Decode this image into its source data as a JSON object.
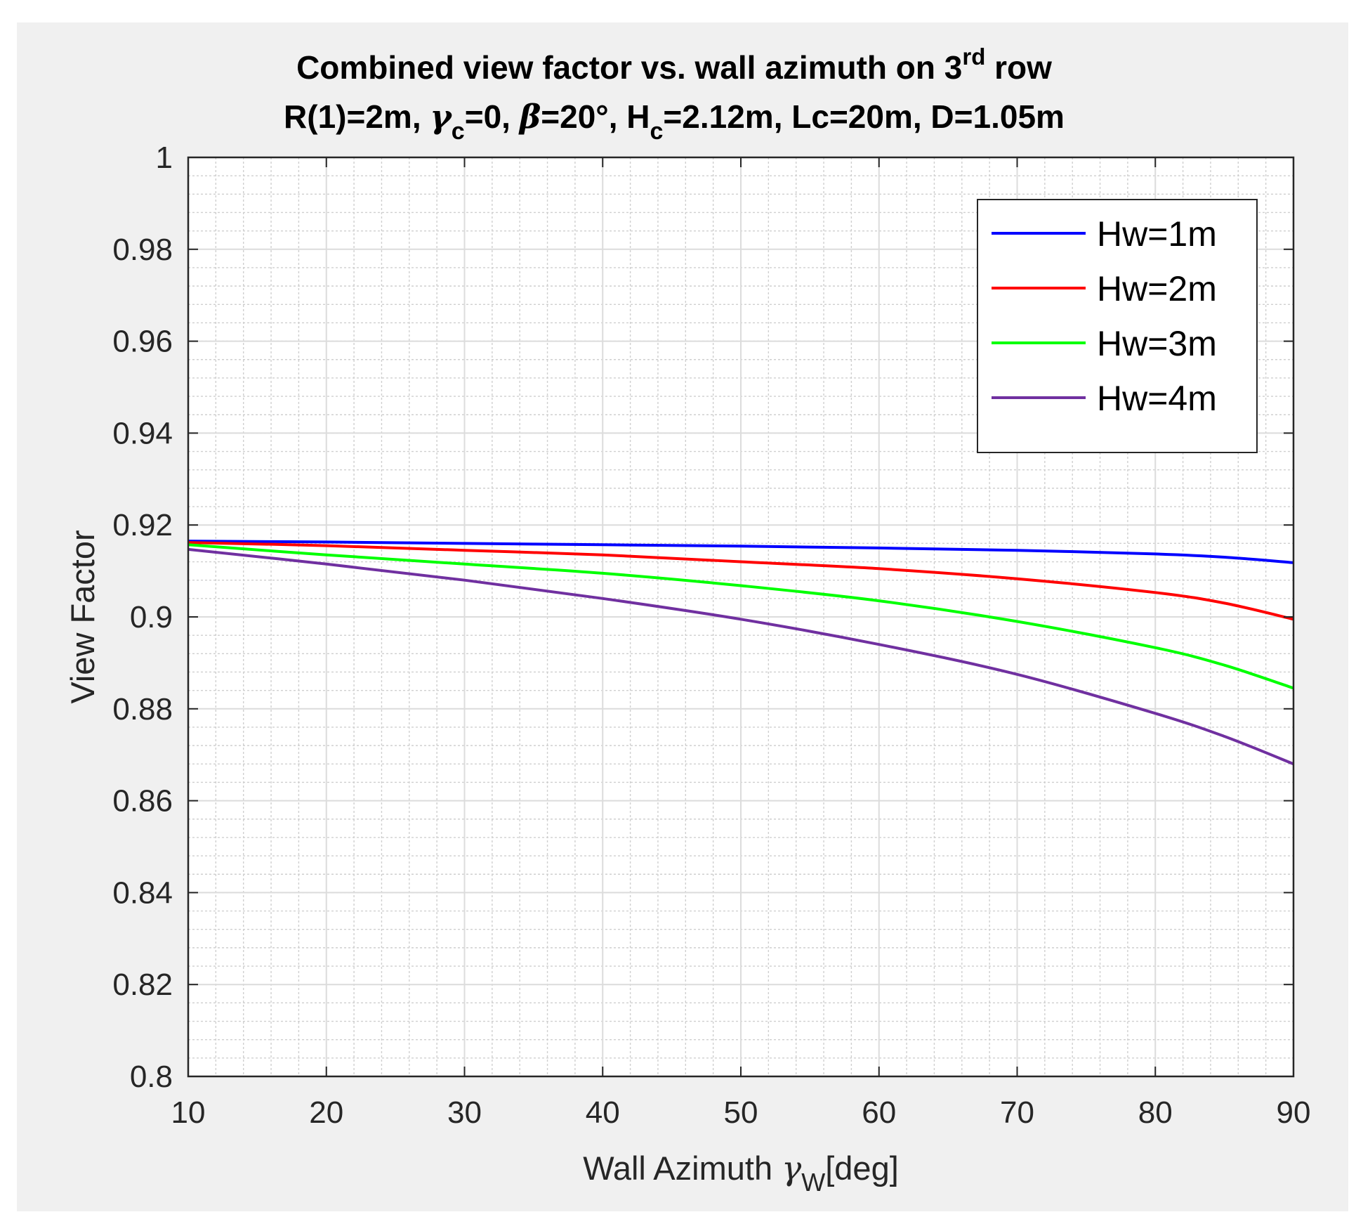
{
  "chart_data": {
    "type": "line",
    "title_line1": "Combined view factor vs. wall azimuth on 3",
    "title_line1_sup": "rd",
    "title_line1_tail": " row",
    "title_line2_parts": {
      "p1": "R(1)=2m, ",
      "gamma": "γ",
      "gamma_sub": "c",
      "p2": "=0, ",
      "beta": "β",
      "p3": "=20°, H",
      "hc_sub": "c",
      "p4": "=2.12m, Lc=20m, D=1.05m"
    },
    "xlabel_main": "Wall Azimuth ",
    "xlabel_gamma": "γ",
    "xlabel_sub": "W",
    "xlabel_tail": "[deg]",
    "ylabel": "View Factor",
    "xlim": [
      10,
      90
    ],
    "ylim": [
      0.8,
      1
    ],
    "x_ticks": [
      "10",
      "20",
      "30",
      "40",
      "50",
      "60",
      "70",
      "80",
      "90"
    ],
    "y_ticks": [
      "0.8",
      "0.82",
      "0.84",
      "0.86",
      "0.88",
      "0.9",
      "0.92",
      "0.94",
      "0.96",
      "0.98",
      "1"
    ],
    "grid": true,
    "minor_grid": true,
    "legend_position": "top-right",
    "x": [
      10,
      20,
      30,
      40,
      50,
      60,
      70,
      80,
      85,
      90
    ],
    "series": [
      {
        "name": "Hw=1m",
        "color": "#0000ff",
        "values": [
          0.9165,
          0.9163,
          0.916,
          0.9157,
          0.9154,
          0.915,
          0.9145,
          0.9137,
          0.913,
          0.9118
        ]
      },
      {
        "name": "Hw=2m",
        "color": "#ff0000",
        "values": [
          0.9162,
          0.9155,
          0.9145,
          0.9135,
          0.912,
          0.9105,
          0.9083,
          0.9053,
          0.903,
          0.8995
        ]
      },
      {
        "name": "Hw=3m",
        "color": "#00ff00",
        "values": [
          0.9157,
          0.9135,
          0.9115,
          0.9095,
          0.9068,
          0.9035,
          0.899,
          0.8933,
          0.8895,
          0.8845
        ]
      },
      {
        "name": "Hw=4m",
        "color": "#7030a0",
        "values": [
          0.9147,
          0.9115,
          0.908,
          0.904,
          0.8995,
          0.894,
          0.8875,
          0.879,
          0.874,
          0.868
        ]
      }
    ]
  }
}
